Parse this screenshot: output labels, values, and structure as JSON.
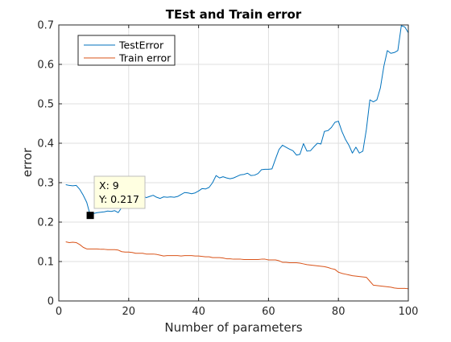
{
  "chart_data": {
    "type": "line",
    "title": "TEst and Train error",
    "xlabel": "Number of parameters",
    "ylabel": "error",
    "xlim": [
      0,
      100
    ],
    "ylim": [
      0,
      0.7
    ],
    "xticks": [
      0,
      20,
      40,
      60,
      80,
      100
    ],
    "xtick_labels": [
      "0",
      "20",
      "40",
      "60",
      "80",
      "100"
    ],
    "yticks": [
      0,
      0.1,
      0.2,
      0.3,
      0.4,
      0.5,
      0.6,
      0.7
    ],
    "ytick_labels": [
      "0",
      "0.1",
      "0.2",
      "0.3",
      "0.4",
      "0.5",
      "0.6",
      "0.7"
    ],
    "grid": true,
    "legend_position": "top-left",
    "x": [
      2,
      3,
      4,
      5,
      6,
      7,
      8,
      9,
      10,
      11,
      12,
      13,
      14,
      15,
      16,
      17,
      18,
      19,
      20,
      21,
      22,
      23,
      24,
      25,
      26,
      27,
      28,
      29,
      30,
      31,
      32,
      33,
      34,
      35,
      36,
      37,
      38,
      39,
      40,
      41,
      42,
      43,
      44,
      45,
      46,
      47,
      48,
      49,
      50,
      51,
      52,
      53,
      54,
      55,
      56,
      57,
      58,
      59,
      60,
      61,
      62,
      63,
      64,
      65,
      66,
      67,
      68,
      69,
      70,
      71,
      72,
      73,
      74,
      75,
      76,
      77,
      78,
      79,
      80,
      81,
      82,
      83,
      84,
      85,
      86,
      87,
      88,
      89,
      90,
      91,
      92,
      93,
      94,
      95,
      96,
      97,
      98,
      99,
      100
    ],
    "series": [
      {
        "name": "TestError",
        "color": "#0072BD",
        "values": [
          0.295,
          0.293,
          0.292,
          0.293,
          0.283,
          0.268,
          0.25,
          0.217,
          0.222,
          0.224,
          0.225,
          0.226,
          0.228,
          0.227,
          0.229,
          0.224,
          0.237,
          0.246,
          0.252,
          0.259,
          0.262,
          0.265,
          0.268,
          0.262,
          0.265,
          0.268,
          0.263,
          0.26,
          0.264,
          0.263,
          0.264,
          0.263,
          0.265,
          0.27,
          0.275,
          0.274,
          0.272,
          0.274,
          0.279,
          0.285,
          0.284,
          0.288,
          0.3,
          0.318,
          0.312,
          0.315,
          0.312,
          0.31,
          0.312,
          0.316,
          0.32,
          0.321,
          0.324,
          0.318,
          0.319,
          0.323,
          0.333,
          0.334,
          0.334,
          0.335,
          0.36,
          0.384,
          0.395,
          0.39,
          0.385,
          0.381,
          0.37,
          0.372,
          0.399,
          0.38,
          0.381,
          0.391,
          0.4,
          0.398,
          0.43,
          0.432,
          0.44,
          0.453,
          0.456,
          0.43,
          0.41,
          0.395,
          0.375,
          0.39,
          0.375,
          0.38,
          0.435,
          0.51,
          0.505,
          0.51,
          0.54,
          0.595,
          0.635,
          0.628,
          0.63,
          0.635,
          0.698,
          0.695,
          0.68
        ]
      },
      {
        "name": "Train error",
        "color": "#D95319",
        "values": [
          0.15,
          0.148,
          0.149,
          0.148,
          0.143,
          0.136,
          0.132,
          0.132,
          0.132,
          0.132,
          0.131,
          0.131,
          0.13,
          0.13,
          0.13,
          0.129,
          0.125,
          0.124,
          0.124,
          0.123,
          0.121,
          0.121,
          0.121,
          0.119,
          0.119,
          0.119,
          0.118,
          0.116,
          0.114,
          0.115,
          0.115,
          0.115,
          0.115,
          0.114,
          0.115,
          0.115,
          0.115,
          0.114,
          0.114,
          0.113,
          0.112,
          0.112,
          0.11,
          0.11,
          0.11,
          0.109,
          0.107,
          0.107,
          0.106,
          0.106,
          0.106,
          0.105,
          0.105,
          0.105,
          0.105,
          0.105,
          0.106,
          0.106,
          0.104,
          0.104,
          0.104,
          0.102,
          0.098,
          0.098,
          0.097,
          0.097,
          0.097,
          0.096,
          0.094,
          0.092,
          0.091,
          0.09,
          0.089,
          0.088,
          0.087,
          0.085,
          0.082,
          0.08,
          0.073,
          0.07,
          0.068,
          0.066,
          0.064,
          0.063,
          0.062,
          0.061,
          0.06,
          0.05,
          0.04,
          0.039,
          0.038,
          0.037,
          0.036,
          0.035,
          0.033,
          0.032,
          0.032,
          0.032,
          0.031
        ]
      }
    ],
    "datatip": {
      "x": 9,
      "y": 0.217,
      "line1": "X: 9",
      "line2": "Y: 0.217"
    }
  }
}
